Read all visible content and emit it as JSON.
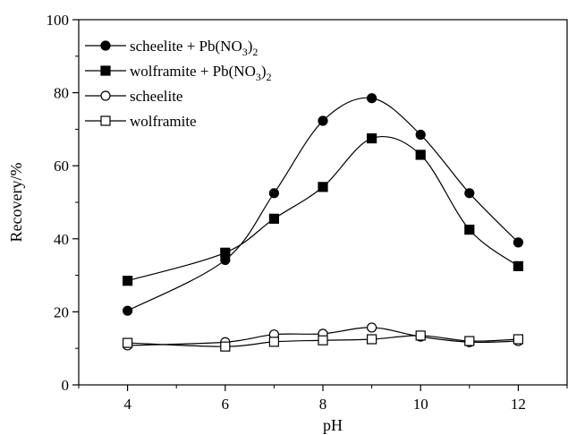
{
  "chart_data": {
    "type": "scatter",
    "title": "",
    "xlabel": "pH",
    "ylabel": "Recovery/%",
    "xlim": [
      3,
      13
    ],
    "ylim": [
      0,
      100
    ],
    "xticks": [
      4,
      6,
      8,
      10,
      12
    ],
    "yticks": [
      0,
      20,
      40,
      60,
      80,
      100
    ],
    "grid": false,
    "legend_position": "top-left",
    "series": [
      {
        "name": "scheelite + Pb(NO3)2",
        "legend_label": {
          "main": "scheelite + Pb(NO",
          "sub1": "3",
          "mid": ")",
          "sub2": "2"
        },
        "marker": "circle",
        "filled": true,
        "color": "#000000",
        "x": [
          4,
          6,
          7,
          8,
          9,
          10,
          11,
          12
        ],
        "y": [
          20.3,
          34.2,
          52.5,
          72.3,
          78.5,
          68.5,
          52.5,
          39.0
        ],
        "fit_curve": true
      },
      {
        "name": "wolframite + Pb(NO3)2",
        "legend_label": {
          "main": "wolframite + Pb(NO",
          "sub1": "3",
          "mid": ")",
          "sub2": "2"
        },
        "marker": "square",
        "filled": true,
        "color": "#000000",
        "x": [
          4,
          6,
          7,
          8,
          9,
          10,
          11,
          12
        ],
        "y": [
          28.5,
          36.2,
          45.5,
          54.2,
          67.5,
          63.0,
          42.5,
          32.5
        ],
        "fit_curve": true
      },
      {
        "name": "scheelite",
        "legend_label": {
          "main": "scheelite"
        },
        "marker": "circle",
        "filled": false,
        "color": "#000000",
        "x": [
          4,
          6,
          7,
          8,
          9,
          10,
          11,
          12
        ],
        "y": [
          10.8,
          11.7,
          13.8,
          14.0,
          15.7,
          13.2,
          11.7,
          12.0
        ],
        "fit_curve": true
      },
      {
        "name": "wolframite",
        "legend_label": {
          "main": "wolframite"
        },
        "marker": "square",
        "filled": false,
        "color": "#000000",
        "x": [
          4,
          6,
          7,
          8,
          9,
          10,
          11,
          12
        ],
        "y": [
          11.5,
          10.5,
          11.8,
          12.2,
          12.5,
          13.5,
          12.0,
          12.5
        ],
        "fit_curve": true
      }
    ]
  }
}
